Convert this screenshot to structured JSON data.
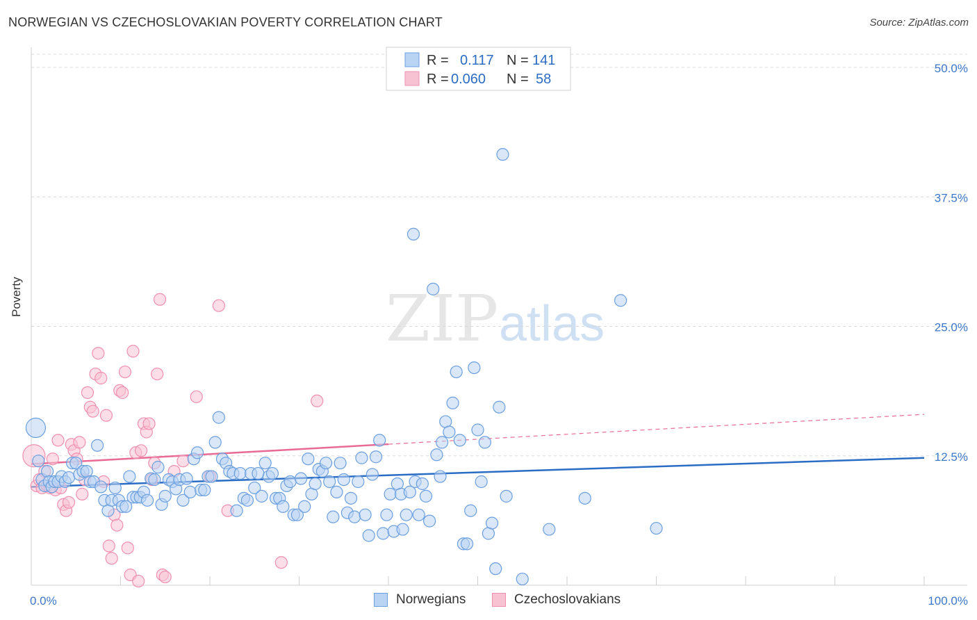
{
  "title": "NORWEGIAN VS CZECHOSLOVAKIAN POVERTY CORRELATION CHART",
  "source": "Source: ZipAtlas.com",
  "watermark": {
    "zip": "ZIP",
    "atlas": "atlas"
  },
  "colors": {
    "blue": "#2b6cc4",
    "blue_fill": "#b9d3f2",
    "blue_stroke": "#6a9fe0",
    "pink": "#e86a95",
    "pink_fill": "#f7c3d3",
    "pink_stroke": "#ef8fb0",
    "grid": "#d8d8d8",
    "axis_text": "#3b78c9"
  },
  "legend": {
    "rows": [
      {
        "r_label": "R =",
        "r_value": "0.117",
        "n_label": "N =",
        "n_value": "141"
      },
      {
        "r_label": "R =",
        "r_value": "0.060",
        "n_label": "N =",
        "n_value": "58"
      }
    ]
  },
  "bottom_legend": {
    "series1": "Norwegians",
    "series2": "Czechoslovakians"
  },
  "chart_data": {
    "type": "scatter",
    "title": "NORWEGIAN VS CZECHOSLOVAKIAN POVERTY CORRELATION CHART",
    "xlabel": "",
    "ylabel": "Poverty",
    "xlim": [
      0,
      100
    ],
    "ylim": [
      0,
      50
    ],
    "x_tick_labels": [
      "0.0%",
      "100.0%"
    ],
    "y_ticks": [
      12.5,
      25.0,
      37.5,
      50.0
    ],
    "y_tick_labels": [
      "12.5%",
      "25.0%",
      "37.5%",
      "50.0%"
    ],
    "series": [
      {
        "name": "Norwegians",
        "r": 0.117,
        "n": 141,
        "trend": {
          "x0": 0,
          "y0": 9.5,
          "x1": 100,
          "y1": 12.3,
          "dashed_from": null
        },
        "points": [
          [
            0.5,
            15.2
          ],
          [
            0.8,
            12.0
          ],
          [
            1.2,
            10.2
          ],
          [
            1.5,
            9.6
          ],
          [
            1.8,
            11.0
          ],
          [
            2.0,
            10.0
          ],
          [
            2.3,
            9.5
          ],
          [
            2.6,
            10.0
          ],
          [
            3.0,
            10.0
          ],
          [
            3.4,
            10.5
          ],
          [
            3.8,
            10.0
          ],
          [
            4.2,
            10.4
          ],
          [
            4.6,
            11.8
          ],
          [
            5.0,
            11.8
          ],
          [
            5.4,
            10.7
          ],
          [
            5.8,
            11.0
          ],
          [
            6.2,
            11.0
          ],
          [
            6.6,
            10.0
          ],
          [
            7.0,
            10.0
          ],
          [
            7.4,
            13.5
          ],
          [
            7.8,
            9.5
          ],
          [
            8.2,
            8.2
          ],
          [
            8.6,
            7.2
          ],
          [
            9.0,
            8.2
          ],
          [
            9.4,
            9.4
          ],
          [
            9.8,
            8.2
          ],
          [
            10.2,
            7.6
          ],
          [
            10.6,
            7.6
          ],
          [
            11.0,
            10.5
          ],
          [
            11.4,
            8.5
          ],
          [
            11.8,
            8.5
          ],
          [
            12.2,
            8.5
          ],
          [
            12.6,
            9.0
          ],
          [
            13.0,
            8.2
          ],
          [
            13.4,
            10.3
          ],
          [
            13.8,
            10.2
          ],
          [
            14.2,
            11.4
          ],
          [
            14.6,
            7.8
          ],
          [
            15.0,
            8.6
          ],
          [
            15.4,
            10.2
          ],
          [
            15.8,
            10.0
          ],
          [
            16.2,
            9.3
          ],
          [
            16.6,
            10.2
          ],
          [
            17.0,
            8.2
          ],
          [
            17.4,
            10.3
          ],
          [
            17.8,
            9.0
          ],
          [
            18.2,
            12.2
          ],
          [
            18.6,
            12.8
          ],
          [
            19.0,
            9.2
          ],
          [
            19.4,
            9.2
          ],
          [
            19.8,
            10.5
          ],
          [
            20.2,
            10.5
          ],
          [
            20.6,
            13.8
          ],
          [
            21.0,
            16.2
          ],
          [
            21.4,
            12.2
          ],
          [
            21.8,
            11.8
          ],
          [
            22.2,
            11.0
          ],
          [
            22.6,
            10.8
          ],
          [
            23.0,
            7.2
          ],
          [
            23.4,
            10.8
          ],
          [
            23.8,
            8.4
          ],
          [
            24.2,
            8.2
          ],
          [
            24.6,
            10.8
          ],
          [
            25.0,
            9.4
          ],
          [
            25.4,
            10.8
          ],
          [
            25.8,
            8.6
          ],
          [
            26.2,
            11.8
          ],
          [
            26.6,
            10.5
          ],
          [
            27.0,
            10.8
          ],
          [
            27.4,
            8.4
          ],
          [
            27.8,
            8.4
          ],
          [
            28.2,
            7.6
          ],
          [
            28.6,
            9.6
          ],
          [
            29.0,
            10.0
          ],
          [
            29.4,
            6.8
          ],
          [
            29.8,
            6.8
          ],
          [
            30.2,
            10.3
          ],
          [
            30.6,
            7.6
          ],
          [
            31.0,
            12.2
          ],
          [
            31.4,
            8.8
          ],
          [
            31.8,
            9.8
          ],
          [
            32.2,
            11.2
          ],
          [
            32.6,
            11.0
          ],
          [
            33.0,
            11.8
          ],
          [
            33.4,
            10.0
          ],
          [
            33.8,
            6.6
          ],
          [
            34.2,
            9.0
          ],
          [
            34.6,
            11.8
          ],
          [
            35.0,
            10.2
          ],
          [
            35.4,
            7.0
          ],
          [
            35.8,
            8.4
          ],
          [
            36.2,
            6.6
          ],
          [
            36.6,
            10.0
          ],
          [
            37.0,
            12.3
          ],
          [
            37.4,
            6.8
          ],
          [
            37.8,
            4.8
          ],
          [
            38.2,
            10.7
          ],
          [
            38.6,
            12.4
          ],
          [
            39.0,
            14.0
          ],
          [
            39.4,
            5.0
          ],
          [
            39.8,
            6.8
          ],
          [
            40.2,
            8.8
          ],
          [
            40.6,
            5.2
          ],
          [
            41.0,
            9.8
          ],
          [
            41.4,
            8.8
          ],
          [
            41.6,
            5.4
          ],
          [
            42.0,
            6.8
          ],
          [
            42.4,
            9.0
          ],
          [
            42.8,
            33.9
          ],
          [
            43.0,
            10.0
          ],
          [
            43.4,
            6.8
          ],
          [
            43.8,
            9.8
          ],
          [
            44.2,
            8.6
          ],
          [
            44.6,
            6.2
          ],
          [
            45.0,
            28.6
          ],
          [
            45.4,
            12.6
          ],
          [
            45.8,
            10.5
          ],
          [
            46.0,
            13.8
          ],
          [
            46.4,
            15.8
          ],
          [
            46.8,
            14.8
          ],
          [
            47.2,
            17.6
          ],
          [
            47.6,
            20.6
          ],
          [
            48.0,
            14.0
          ],
          [
            48.4,
            4.0
          ],
          [
            48.8,
            4.0
          ],
          [
            49.2,
            7.2
          ],
          [
            49.6,
            21.0
          ],
          [
            50.0,
            15.0
          ],
          [
            50.4,
            10.0
          ],
          [
            50.8,
            13.8
          ],
          [
            51.2,
            5.0
          ],
          [
            51.6,
            6.0
          ],
          [
            52.0,
            1.6
          ],
          [
            52.4,
            17.2
          ],
          [
            52.8,
            41.6
          ],
          [
            53.2,
            8.6
          ],
          [
            55.0,
            0.6
          ],
          [
            58.0,
            5.4
          ],
          [
            62.0,
            8.4
          ],
          [
            66.0,
            27.5
          ],
          [
            70.0,
            5.5
          ]
        ]
      },
      {
        "name": "Czechoslovakians",
        "r": 0.06,
        "n": 58,
        "trend": {
          "x0": 0,
          "y0": 11.7,
          "x1": 100,
          "y1": 16.5,
          "dashed_from": 40
        },
        "points": [
          [
            0.3,
            12.5
          ],
          [
            0.6,
            9.6
          ],
          [
            0.9,
            10.2
          ],
          [
            1.2,
            9.4
          ],
          [
            1.5,
            11.0
          ],
          [
            1.8,
            9.6
          ],
          [
            2.1,
            9.4
          ],
          [
            2.4,
            12.2
          ],
          [
            2.7,
            9.2
          ],
          [
            3.0,
            14.0
          ],
          [
            3.3,
            9.4
          ],
          [
            3.6,
            7.8
          ],
          [
            3.9,
            7.2
          ],
          [
            4.2,
            8.0
          ],
          [
            4.5,
            13.6
          ],
          [
            4.8,
            13.0
          ],
          [
            5.1,
            12.2
          ],
          [
            5.4,
            13.8
          ],
          [
            5.7,
            8.8
          ],
          [
            6.0,
            10.2
          ],
          [
            6.3,
            18.6
          ],
          [
            6.6,
            17.2
          ],
          [
            6.9,
            16.8
          ],
          [
            7.2,
            20.4
          ],
          [
            7.5,
            22.4
          ],
          [
            7.8,
            20.0
          ],
          [
            8.1,
            10.0
          ],
          [
            8.4,
            16.4
          ],
          [
            8.7,
            3.8
          ],
          [
            9.0,
            2.6
          ],
          [
            9.3,
            6.8
          ],
          [
            9.6,
            5.8
          ],
          [
            9.9,
            18.8
          ],
          [
            10.2,
            18.6
          ],
          [
            10.5,
            20.6
          ],
          [
            10.8,
            3.6
          ],
          [
            11.1,
            1.0
          ],
          [
            11.4,
            22.6
          ],
          [
            11.7,
            12.8
          ],
          [
            12.0,
            0.4
          ],
          [
            12.3,
            13.0
          ],
          [
            12.6,
            15.6
          ],
          [
            12.9,
            14.8
          ],
          [
            13.2,
            15.6
          ],
          [
            13.5,
            10.2
          ],
          [
            13.8,
            11.8
          ],
          [
            14.1,
            20.4
          ],
          [
            14.4,
            27.6
          ],
          [
            14.7,
            1.0
          ],
          [
            15.0,
            0.8
          ],
          [
            16.0,
            11.0
          ],
          [
            17.0,
            12.0
          ],
          [
            18.5,
            18.2
          ],
          [
            20.0,
            10.5
          ],
          [
            21.0,
            27.0
          ],
          [
            22.0,
            7.2
          ],
          [
            28.0,
            2.2
          ],
          [
            32.0,
            17.8
          ]
        ]
      }
    ]
  }
}
